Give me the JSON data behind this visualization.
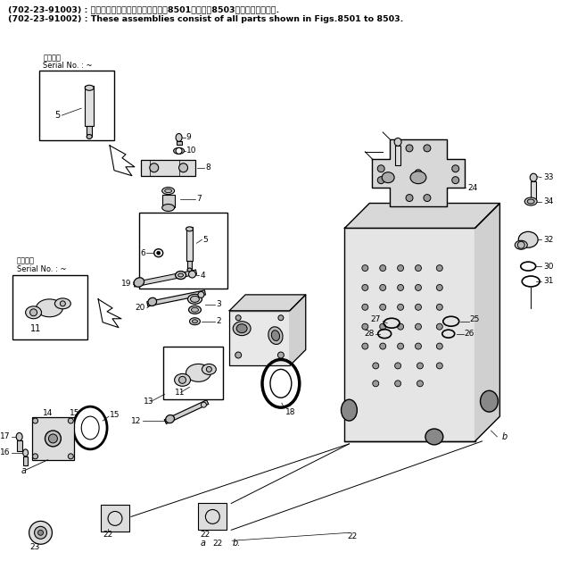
{
  "bg_color": "#ffffff",
  "header_line1": "(702-23-91003) : これらのアセンブリの構成品は図8501図から図8503まででございます.",
  "header_line2": "(702-23-91002) : These assemblies consist of all parts shown in Figs.8501 to 8503.",
  "serial_box1_text1": "適用号機",
  "serial_box1_text2": "Serial No. : ~",
  "serial_box2_text1": "連系号機",
  "serial_box2_text2": "Serial No. : ~",
  "fig_width": 6.29,
  "fig_height": 6.28,
  "dpi": 100
}
